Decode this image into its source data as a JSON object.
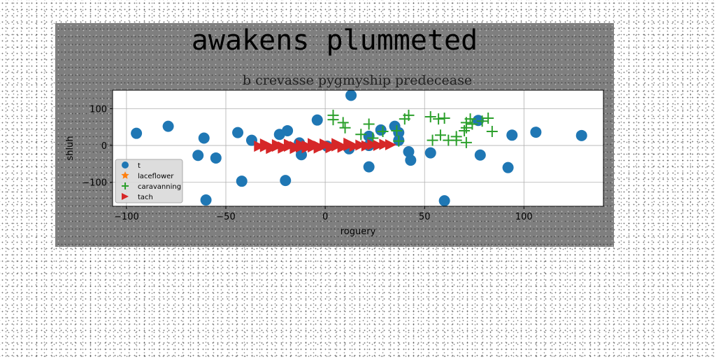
{
  "figure_title": "awakens plummeted",
  "chart_data": {
    "type": "scatter",
    "title": "b crevasse pygmyship predecease",
    "xlabel": "roguery",
    "ylabel": "shluh",
    "xlim": [
      -107,
      140
    ],
    "ylim": [
      -165,
      150
    ],
    "xticks": [
      -100,
      -50,
      0,
      50,
      100
    ],
    "yticks": [
      -100,
      0,
      100
    ],
    "xtick_labels": [
      "−100",
      "−50",
      "0",
      "50",
      "100"
    ],
    "ytick_labels": [
      "−100",
      "0",
      "100"
    ],
    "grid": true,
    "legend_placement": "lower-left",
    "series": [
      {
        "name": "t",
        "marker": "circle",
        "color": "#1f77b4",
        "points": [
          [
            -95,
            33
          ],
          [
            -79,
            52
          ],
          [
            -61,
            20
          ],
          [
            -64,
            -27
          ],
          [
            -55,
            -34
          ],
          [
            -60,
            -148
          ],
          [
            -44,
            35
          ],
          [
            -42,
            -97
          ],
          [
            -37,
            14
          ],
          [
            -23,
            30
          ],
          [
            -19,
            40
          ],
          [
            -20,
            -95
          ],
          [
            -13,
            7
          ],
          [
            -12,
            -25
          ],
          [
            -4,
            69
          ],
          [
            1,
            -2
          ],
          [
            13,
            136
          ],
          [
            12,
            -9
          ],
          [
            22,
            25
          ],
          [
            22,
            -58
          ],
          [
            22,
            0
          ],
          [
            28,
            42
          ],
          [
            35,
            52
          ],
          [
            37,
            35
          ],
          [
            37,
            14
          ],
          [
            42,
            -17
          ],
          [
            43,
            -40
          ],
          [
            53,
            -20
          ],
          [
            60,
            -150
          ],
          [
            77,
            68
          ],
          [
            78,
            -26
          ],
          [
            92,
            -60
          ],
          [
            94,
            28
          ],
          [
            106,
            36
          ],
          [
            129,
            27
          ]
        ]
      },
      {
        "name": "laceflower",
        "marker": "star",
        "color": "#ff7f0e",
        "points": []
      },
      {
        "name": "caravanning",
        "marker": "plus",
        "color": "#2ca02c",
        "points": [
          [
            4,
            82
          ],
          [
            4,
            70
          ],
          [
            9,
            62
          ],
          [
            10,
            48
          ],
          [
            18,
            30
          ],
          [
            22,
            58
          ],
          [
            24,
            20
          ],
          [
            29,
            38
          ],
          [
            36,
            40
          ],
          [
            37,
            12
          ],
          [
            40,
            72
          ],
          [
            42,
            82
          ],
          [
            53,
            78
          ],
          [
            54,
            14
          ],
          [
            57,
            72
          ],
          [
            58,
            28
          ],
          [
            60,
            74
          ],
          [
            62,
            14
          ],
          [
            66,
            14
          ],
          [
            66,
            24
          ],
          [
            70,
            40
          ],
          [
            71,
            62
          ],
          [
            71,
            48
          ],
          [
            73,
            72
          ],
          [
            74,
            58
          ],
          [
            79,
            66
          ],
          [
            82,
            74
          ],
          [
            84,
            38
          ],
          [
            71,
            8
          ]
        ]
      },
      {
        "name": "tach",
        "marker": "triangle-right",
        "color": "#d62728",
        "points": [
          [
            -33,
            -2
          ],
          [
            -30,
            -3
          ],
          [
            -27,
            -4
          ],
          [
            -24,
            -2
          ],
          [
            -21,
            -4
          ],
          [
            -18,
            -2
          ],
          [
            -15,
            -3
          ],
          [
            -12,
            -4
          ],
          [
            -9,
            -1
          ],
          [
            -6,
            -4
          ],
          [
            -3,
            -2
          ],
          [
            0,
            0
          ],
          [
            3,
            -3
          ],
          [
            6,
            -1
          ],
          [
            9,
            -3
          ],
          [
            12,
            0
          ],
          [
            15,
            -2
          ],
          [
            18,
            1
          ],
          [
            21,
            -1
          ],
          [
            24,
            2
          ],
          [
            27,
            0
          ],
          [
            30,
            3
          ],
          [
            33,
            2
          ],
          [
            -30,
            4
          ],
          [
            -24,
            2
          ],
          [
            -18,
            3
          ],
          [
            -12,
            2
          ],
          [
            -6,
            5
          ],
          [
            0,
            4
          ],
          [
            6,
            5
          ],
          [
            12,
            6
          ],
          [
            -27,
            -8
          ],
          [
            -21,
            -7
          ],
          [
            -15,
            -8
          ],
          [
            -9,
            -6
          ],
          [
            -3,
            -7
          ],
          [
            3,
            -6
          ],
          [
            9,
            -5
          ]
        ]
      }
    ]
  }
}
